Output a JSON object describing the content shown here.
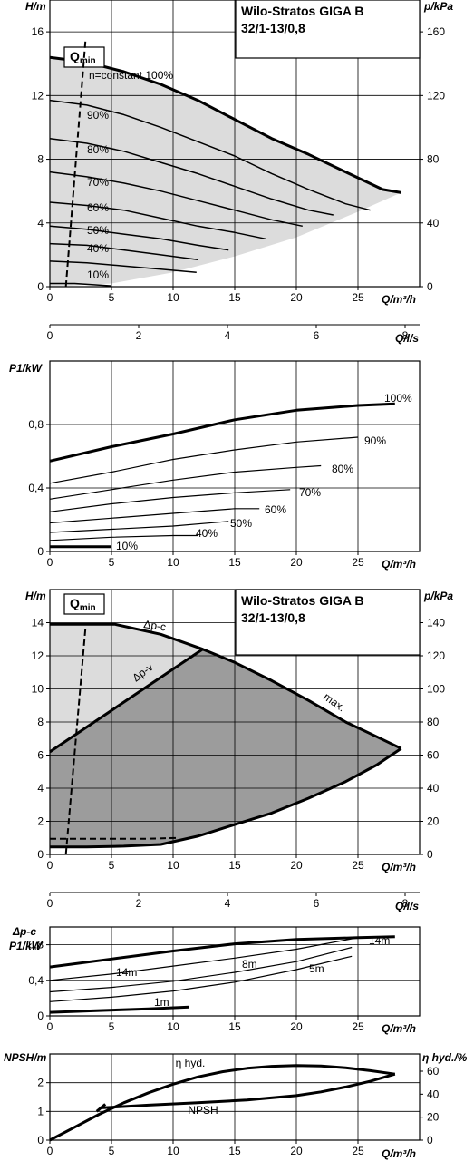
{
  "chart_data": [
    {
      "id": "performance",
      "type": "line",
      "title": "Wilo-Stratos GIGA B",
      "subtitle": "32/1-13/0,8",
      "ylabel": "H/m",
      "y2label": "p/kPa",
      "xlabel": "Q/m³/h",
      "x2label": "Q/l/s",
      "xlim": [
        0,
        30
      ],
      "ylim": [
        0,
        18
      ],
      "xticks": [
        0,
        5,
        10,
        15,
        20,
        25
      ],
      "yticks": [
        0,
        4,
        8,
        12,
        16
      ],
      "y2ticks": [
        0,
        40,
        80,
        120,
        160
      ],
      "x2ticks": [
        0,
        2,
        4,
        6,
        8
      ],
      "qmin_label": "Q",
      "qmin_sub": "min",
      "qmin_line": [
        [
          1.3,
          0
        ],
        [
          2.9,
          15.9
        ]
      ],
      "series": [
        {
          "name": "n=constant 100%",
          "x": [
            0,
            3,
            6,
            9,
            12,
            15,
            18,
            21,
            24,
            27,
            28.5
          ],
          "y": [
            14.4,
            14.1,
            13.5,
            12.7,
            11.7,
            10.5,
            9.3,
            8.3,
            7.2,
            6.1,
            5.9
          ]
        },
        {
          "name": "90%",
          "x": [
            0,
            3,
            6,
            9,
            12,
            15,
            18,
            21,
            24,
            26
          ],
          "y": [
            11.7,
            11.4,
            10.8,
            10.0,
            9.1,
            8.2,
            7.1,
            6.1,
            5.2,
            4.8
          ]
        },
        {
          "name": "80%",
          "x": [
            0,
            3,
            6,
            9,
            12,
            15,
            18,
            21,
            23
          ],
          "y": [
            9.3,
            9.0,
            8.5,
            7.8,
            7.1,
            6.3,
            5.5,
            4.8,
            4.5
          ]
        },
        {
          "name": "70%",
          "x": [
            0,
            3,
            6,
            9,
            12,
            15,
            18,
            20.5
          ],
          "y": [
            7.2,
            6.9,
            6.5,
            6.0,
            5.4,
            4.8,
            4.2,
            3.8
          ]
        },
        {
          "name": "60%",
          "x": [
            0,
            3,
            6,
            9,
            12,
            15,
            17.5
          ],
          "y": [
            5.3,
            5.1,
            4.8,
            4.3,
            3.8,
            3.4,
            3.0
          ]
        },
        {
          "name": "50%",
          "x": [
            0,
            3,
            6,
            9,
            12,
            14.5
          ],
          "y": [
            3.8,
            3.6,
            3.3,
            3.0,
            2.6,
            2.3
          ]
        },
        {
          "name": "40%",
          "x": [
            0,
            3,
            6,
            9,
            12
          ],
          "y": [
            2.7,
            2.6,
            2.3,
            2.0,
            1.7
          ]
        },
        {
          "name": "",
          "x": [
            0,
            3,
            6,
            9,
            11.9
          ],
          "y": [
            1.6,
            1.5,
            1.3,
            1.1,
            0.9
          ]
        },
        {
          "name": "10%",
          "x": [
            0,
            2,
            4,
            5
          ],
          "y": [
            0.2,
            0.2,
            0.1,
            0.05
          ]
        }
      ],
      "area": {
        "x": [
          0,
          3,
          6,
          9,
          12,
          15,
          18,
          21,
          24,
          27,
          28.5,
          25,
          20,
          15,
          10,
          5,
          0
        ],
        "y": [
          14.4,
          14.1,
          13.5,
          12.7,
          11.7,
          10.5,
          9.3,
          8.3,
          7.2,
          6.1,
          5.9,
          4.7,
          3.1,
          1.9,
          0.9,
          0.2,
          0
        ]
      }
    },
    {
      "id": "power",
      "type": "line",
      "ylabel": "P1/kW",
      "xlabel": "Q/m³/h",
      "xlim": [
        0,
        30
      ],
      "ylim": [
        0,
        1.2
      ],
      "xticks": [
        0,
        5,
        10,
        15,
        20,
        25
      ],
      "yticks": [
        "0",
        "0,4",
        "0,8"
      ],
      "ytick_values": [
        0,
        0.4,
        0.8
      ],
      "series": [
        {
          "name": "100%",
          "x": [
            0,
            5,
            10,
            15,
            20,
            25,
            28
          ],
          "y": [
            0.57,
            0.66,
            0.74,
            0.83,
            0.89,
            0.92,
            0.93
          ]
        },
        {
          "name": "90%",
          "x": [
            0,
            5,
            10,
            15,
            20,
            25
          ],
          "y": [
            0.43,
            0.5,
            0.58,
            0.64,
            0.69,
            0.72
          ]
        },
        {
          "name": "80%",
          "x": [
            0,
            5,
            10,
            15,
            20,
            22
          ],
          "y": [
            0.33,
            0.39,
            0.45,
            0.5,
            0.53,
            0.54
          ]
        },
        {
          "name": "70%",
          "x": [
            0,
            5,
            10,
            15,
            19.5
          ],
          "y": [
            0.25,
            0.3,
            0.34,
            0.37,
            0.39
          ]
        },
        {
          "name": "60%",
          "x": [
            0,
            5,
            10,
            15,
            17
          ],
          "y": [
            0.18,
            0.21,
            0.24,
            0.27,
            0.27
          ]
        },
        {
          "name": "50%",
          "x": [
            0,
            5,
            10,
            14.5
          ],
          "y": [
            0.12,
            0.14,
            0.16,
            0.19
          ]
        },
        {
          "name": "40%",
          "x": [
            0,
            5,
            10,
            12
          ],
          "y": [
            0.07,
            0.09,
            0.1,
            0.1
          ]
        },
        {
          "name": "10%",
          "x": [
            0,
            2,
            4,
            5
          ],
          "y": [
            0.03,
            0.03,
            0.03,
            0.03
          ]
        }
      ]
    },
    {
      "id": "control",
      "type": "area",
      "title": "Wilo-Stratos GIGA B",
      "subtitle": "32/1-13/0,8",
      "ylabel": "H/m",
      "y2label": "p/kPa",
      "xlabel": "Q/m³/h",
      "x2label": "Q/l/s",
      "xlim": [
        0,
        30
      ],
      "ylim": [
        0,
        16
      ],
      "xticks": [
        0,
        5,
        10,
        15,
        20,
        25
      ],
      "yticks": [
        0,
        2,
        4,
        6,
        8,
        10,
        12,
        14
      ],
      "y2ticks": [
        0,
        20,
        40,
        60,
        80,
        100,
        120,
        140
      ],
      "x2ticks": [
        0,
        2,
        4,
        6,
        8
      ],
      "qmin_label": "Q",
      "qmin_sub": "min",
      "qmin_line": [
        [
          1.3,
          0
        ],
        [
          2.9,
          14
        ]
      ],
      "labels": [
        "Δp-c",
        "Δp-v",
        "max."
      ],
      "max_curve": {
        "x": [
          0,
          5.3,
          9,
          12.4,
          15,
          18,
          21,
          24,
          26,
          28.5
        ],
        "y": [
          13.9,
          13.9,
          13.3,
          12.4,
          11.6,
          10.5,
          9.3,
          8.0,
          7.3,
          6.4
        ]
      },
      "dpv_line": {
        "x": [
          0,
          12.4
        ],
        "y": [
          6.2,
          12.4
        ]
      },
      "min_curve": {
        "x": [
          0,
          3,
          6,
          9,
          12,
          15,
          18,
          21,
          24,
          26.5,
          28.5
        ],
        "y": [
          0.45,
          0.45,
          0.5,
          0.6,
          1.1,
          1.8,
          2.5,
          3.4,
          4.4,
          5.4,
          6.4
        ]
      },
      "dashed_min": {
        "x": [
          0,
          2,
          4,
          6,
          8,
          10.3
        ],
        "y": [
          0.95,
          0.95,
          0.95,
          0.95,
          0.95,
          1.0
        ]
      }
    },
    {
      "id": "power-dpc",
      "type": "line",
      "ylabel": "P1/kW",
      "ylabel_top": "Δp-c",
      "xlabel": "Q/m³/h",
      "xlim": [
        0,
        30
      ],
      "ylim": [
        0,
        1.0
      ],
      "xticks": [
        0,
        5,
        10,
        15,
        20,
        25
      ],
      "yticks": [
        "0",
        "0,4",
        "0,8"
      ],
      "ytick_values": [
        0,
        0.4,
        0.8
      ],
      "series": [
        {
          "name": "14m",
          "x": [
            0,
            5,
            10,
            15,
            20,
            25,
            28
          ],
          "y": [
            0.55,
            0.64,
            0.73,
            0.81,
            0.86,
            0.88,
            0.89
          ]
        },
        {
          "name": "",
          "x": [
            0,
            5,
            10,
            15,
            20,
            25
          ],
          "y": [
            0.4,
            0.47,
            0.56,
            0.65,
            0.75,
            0.88
          ]
        },
        {
          "name": "8m",
          "x": [
            0,
            5,
            10,
            15,
            20,
            24.5
          ],
          "y": [
            0.27,
            0.32,
            0.39,
            0.49,
            0.61,
            0.77
          ]
        },
        {
          "name": "5m",
          "x": [
            0,
            5,
            10,
            15,
            20,
            24.5
          ],
          "y": [
            0.16,
            0.21,
            0.28,
            0.38,
            0.52,
            0.67
          ]
        },
        {
          "name": "1m",
          "x": [
            0,
            4,
            8,
            11.3
          ],
          "y": [
            0.04,
            0.06,
            0.08,
            0.1
          ]
        }
      ]
    },
    {
      "id": "npsh",
      "type": "line",
      "ylabel": "NPSH/m",
      "y2label": "η hyd./%",
      "xlabel": "Q/m³/h",
      "xlim": [
        0,
        30
      ],
      "ylim": [
        0,
        3
      ],
      "xticks": [
        0,
        5,
        10,
        15,
        20,
        25
      ],
      "yticks": [
        0,
        1,
        2
      ],
      "y2ticks": [
        0,
        20,
        40,
        60
      ],
      "series": [
        {
          "name": "η hyd.",
          "x": [
            0,
            2,
            4,
            6,
            8,
            10,
            12,
            14,
            16,
            18,
            20,
            22,
            24,
            26,
            28
          ],
          "y": [
            0.0,
            0.45,
            0.9,
            1.3,
            1.65,
            1.95,
            2.2,
            2.38,
            2.5,
            2.57,
            2.6,
            2.58,
            2.52,
            2.42,
            2.3
          ]
        },
        {
          "name": "NPSH",
          "x": [
            4,
            8,
            12,
            16,
            20,
            22,
            24,
            26,
            28
          ],
          "y": [
            1.12,
            1.22,
            1.3,
            1.4,
            1.55,
            1.68,
            1.85,
            2.05,
            2.3
          ]
        },
        {
          "name": "",
          "x": [
            3.8,
            4.5
          ],
          "y": [
            1.0,
            1.25
          ]
        }
      ]
    }
  ]
}
